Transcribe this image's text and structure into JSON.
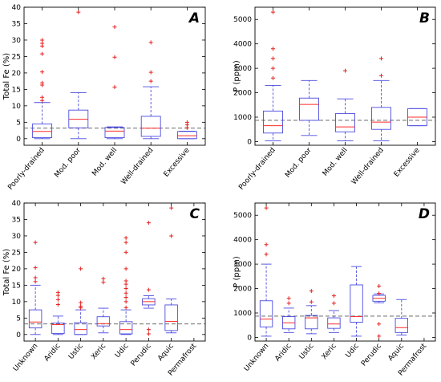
{
  "chart_data": [
    {
      "panel": "A",
      "type": "box",
      "ylabel": "Total Fe (%)",
      "ylim": [
        -2,
        40
      ],
      "yticks": [
        0,
        5,
        10,
        15,
        20,
        25,
        30,
        35,
        40
      ],
      "reference_line": 3.2,
      "categories": [
        "Poorly-drained",
        "Mod. poor",
        "Mod. well",
        "Well-drained",
        "Excessive"
      ],
      "boxes": [
        {
          "min": 0,
          "q1": 0.3,
          "median": 2.2,
          "q3": 4.5,
          "max": 11,
          "outliers": [
            11.6,
            12.6,
            16.3,
            17,
            20.3,
            25.8,
            28.2,
            29,
            30
          ]
        },
        {
          "min": 0,
          "q1": 3.3,
          "median": 5.9,
          "q3": 8.7,
          "max": 14,
          "outliers": [
            38.5
          ]
        },
        {
          "min": 0,
          "q1": 0.3,
          "median": 2.3,
          "q3": 3.4,
          "max": 3.6,
          "outliers": [
            15.7,
            24.8,
            34
          ]
        },
        {
          "min": 0,
          "q1": 0.7,
          "median": 3.2,
          "q3": 6.8,
          "max": 15.8,
          "outliers": [
            17.5,
            20.2,
            29.3
          ]
        },
        {
          "min": 0,
          "q1": 0,
          "median": 0.9,
          "q3": 2.2,
          "max": 2.3,
          "outliers": [
            3.3,
            4.2,
            5
          ]
        }
      ]
    },
    {
      "panel": "B",
      "type": "box",
      "ylabel": "P (ppm)",
      "ylim": [
        -150,
        5500
      ],
      "yticks": [
        0,
        1000,
        2000,
        3000,
        4000,
        5000
      ],
      "reference_line": 870,
      "categories": [
        "Poorly-drained",
        "Mod. poor",
        "Mod. well",
        "Well-drained",
        "Excessive"
      ],
      "boxes": [
        {
          "min": 30,
          "q1": 350,
          "median": 650,
          "q3": 1250,
          "max": 2300,
          "outliers": [
            2600,
            3000,
            3400,
            3800,
            5300
          ]
        },
        {
          "min": 250,
          "q1": 870,
          "median": 1520,
          "q3": 1780,
          "max": 2500,
          "outliers": []
        },
        {
          "min": 30,
          "q1": 400,
          "median": 600,
          "q3": 1150,
          "max": 1750,
          "outliers": [
            2900
          ]
        },
        {
          "min": 30,
          "q1": 500,
          "median": 800,
          "q3": 1400,
          "max": 2500,
          "outliers": [
            2700,
            3400
          ]
        },
        {
          "min": 650,
          "q1": 650,
          "median": 1000,
          "q3": 1350,
          "max": 1350,
          "outliers": []
        }
      ]
    },
    {
      "panel": "C",
      "type": "box",
      "ylabel": "Total Fe (%)",
      "ylim": [
        -2,
        40
      ],
      "yticks": [
        0,
        5,
        10,
        15,
        20,
        25,
        30,
        35,
        40
      ],
      "reference_line": 3.2,
      "categories": [
        "Unknown",
        "Aridic",
        "Ustic",
        "Xeric",
        "Udic",
        "Perudic",
        "Aquic",
        "Permafrost"
      ],
      "boxes": [
        {
          "min": 0,
          "q1": 2,
          "median": 3.8,
          "q3": 7.5,
          "max": 15,
          "outliers": [
            16.1,
            17.3,
            20.3,
            28
          ]
        },
        {
          "min": 0,
          "q1": 0.3,
          "median": 3,
          "q3": 3.5,
          "max": 5.6,
          "outliers": [
            9.1,
            10.6,
            11.9,
            12.8
          ]
        },
        {
          "min": 0,
          "q1": 0,
          "median": 1.5,
          "q3": 3.6,
          "max": 7.5,
          "outliers": [
            8.1,
            8.6,
            9.7,
            20
          ]
        },
        {
          "min": 0.5,
          "q1": 2.6,
          "median": 3.3,
          "q3": 5.4,
          "max": 8,
          "outliers": [
            15.9,
            17
          ]
        },
        {
          "min": 0,
          "q1": 0.2,
          "median": 1.5,
          "q3": 3.9,
          "max": 7.5,
          "outliers": [
            8.2,
            10,
            11.3,
            12.6,
            14,
            15.3,
            16.3,
            20,
            25,
            28,
            29.4
          ]
        },
        {
          "min": 8,
          "q1": 9,
          "median": 10,
          "q3": 10.9,
          "max": 11.8,
          "outliers": [
            0.2,
            1.5,
            13.6,
            34
          ]
        },
        {
          "min": 0.5,
          "q1": 1.2,
          "median": 4,
          "q3": 9,
          "max": 10.8,
          "outliers": [
            30,
            38.5
          ]
        },
        null
      ]
    },
    {
      "panel": "D",
      "type": "box",
      "ylabel": "P (ppm)",
      "ylim": [
        -150,
        5500
      ],
      "yticks": [
        0,
        1000,
        2000,
        3000,
        4000,
        5000
      ],
      "reference_line": 870,
      "categories": [
        "Unknown",
        "Aridic",
        "Ustic",
        "Xeric",
        "Udic",
        "Perudic",
        "Aquic",
        "Permafrost"
      ],
      "boxes": [
        {
          "min": 50,
          "q1": 430,
          "median": 750,
          "q3": 1500,
          "max": 3000,
          "outliers": [
            3400,
            3800,
            5300
          ]
        },
        {
          "min": 200,
          "q1": 350,
          "median": 600,
          "q3": 850,
          "max": 1200,
          "outliers": [
            1400,
            1600
          ]
        },
        {
          "min": 150,
          "q1": 350,
          "median": 800,
          "q3": 900,
          "max": 1300,
          "outliers": [
            1450,
            1900
          ]
        },
        {
          "min": 200,
          "q1": 370,
          "median": 550,
          "q3": 800,
          "max": 1100,
          "outliers": [
            1400,
            1700
          ]
        },
        {
          "min": 50,
          "q1": 620,
          "median": 850,
          "q3": 2150,
          "max": 2900,
          "outliers": []
        },
        {
          "min": 1420,
          "q1": 1480,
          "median": 1600,
          "q3": 1720,
          "max": 1780,
          "outliers": [
            50,
            550,
            1800,
            2100
          ]
        },
        {
          "min": 100,
          "q1": 200,
          "median": 400,
          "q3": 780,
          "max": 1550,
          "outliers": []
        },
        null
      ]
    }
  ]
}
